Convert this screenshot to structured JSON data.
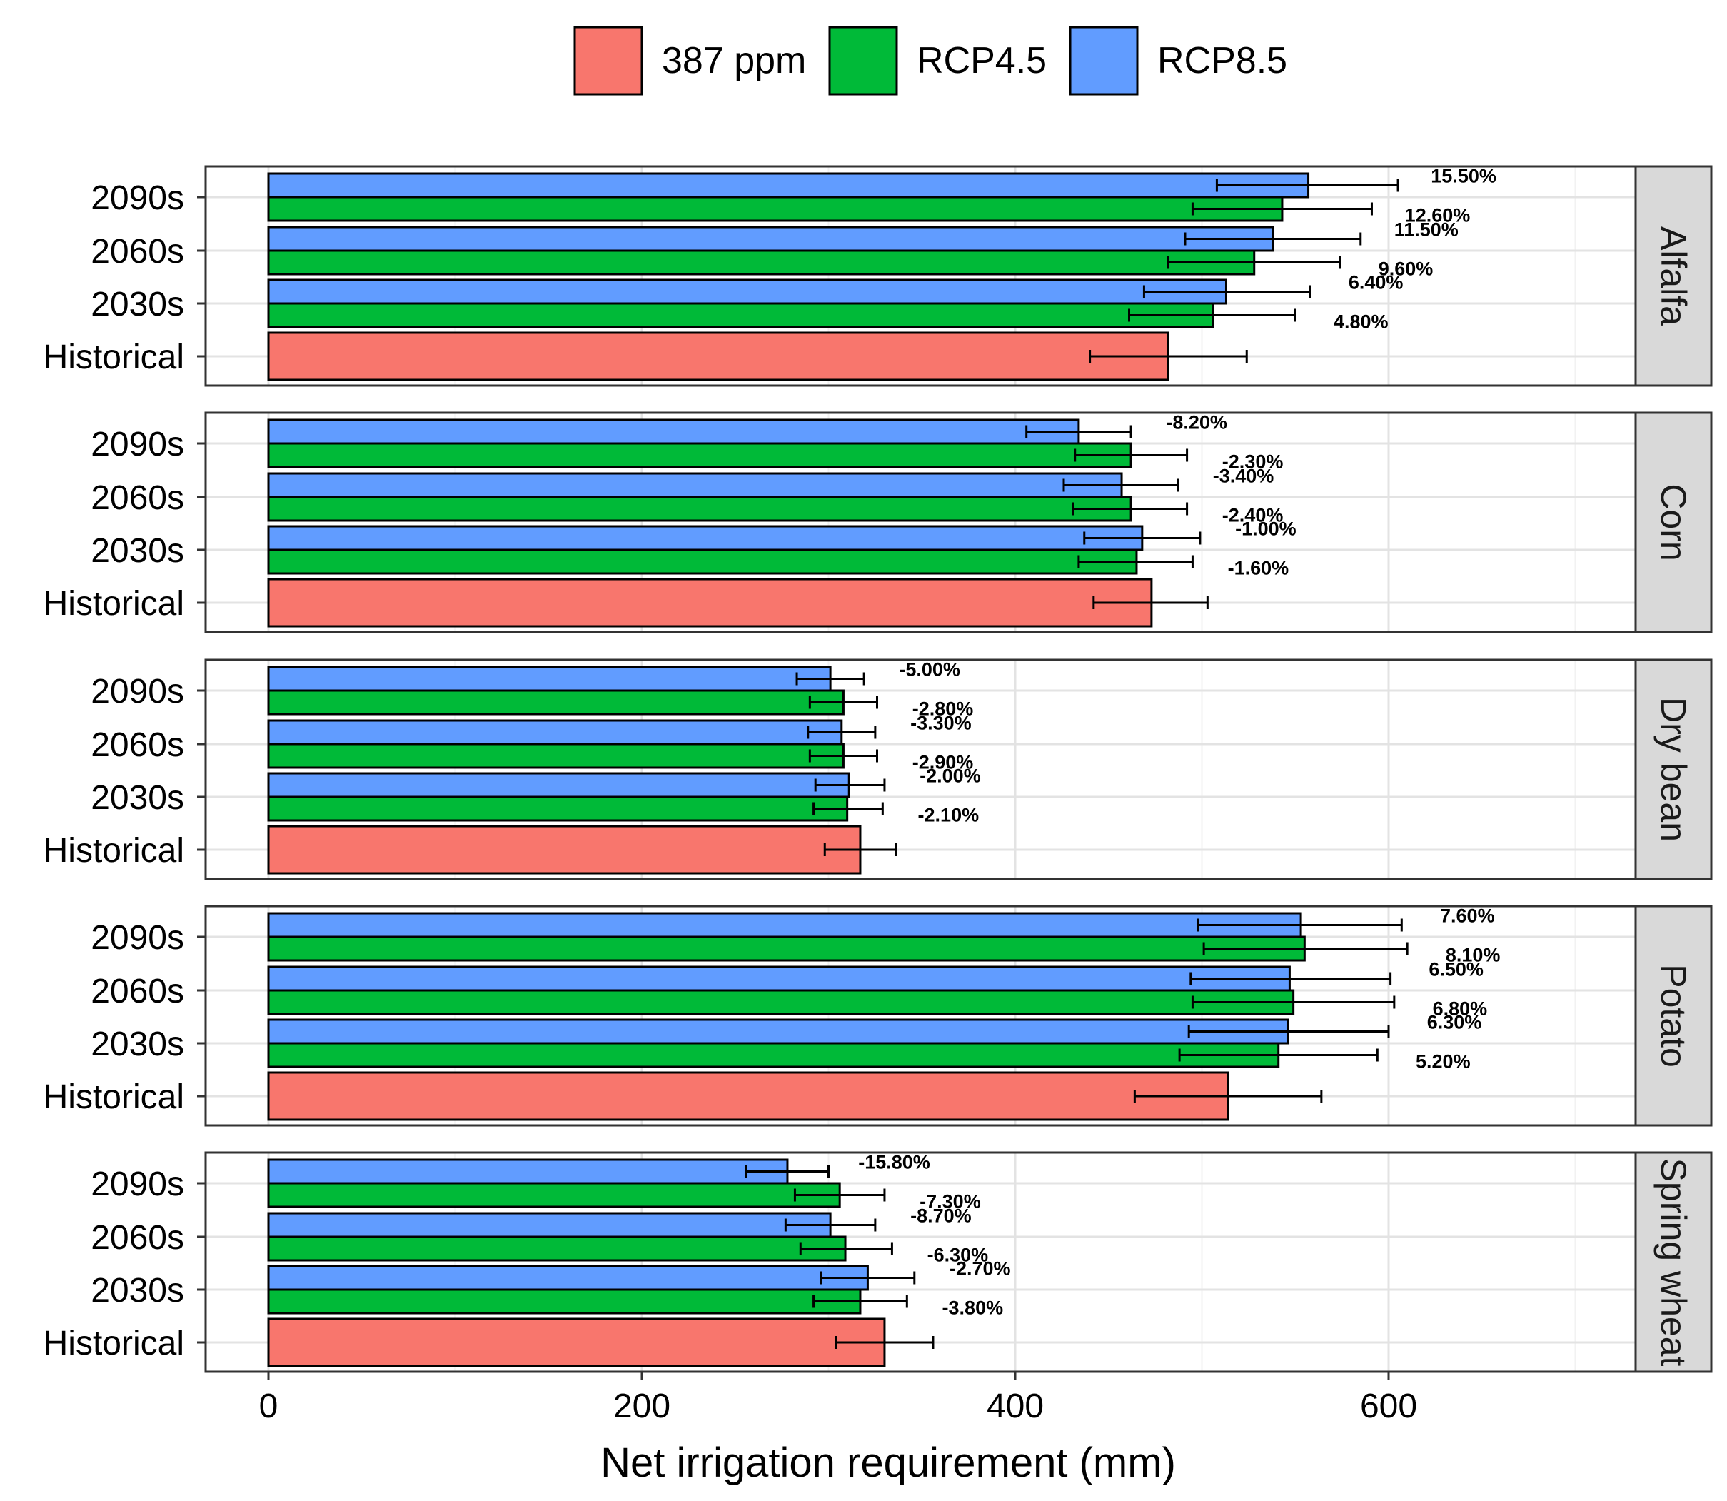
{
  "chart_data": {
    "type": "bar",
    "orientation": "horizontal",
    "xlabel": "Net irrigation requirement (mm)",
    "xlim": [
      -35,
      735
    ],
    "xticks": [
      0,
      200,
      400,
      600
    ],
    "categories": [
      "Historical",
      "2030s",
      "2060s",
      "2090s"
    ],
    "legend": {
      "position": "top",
      "items": [
        {
          "label": "387 ppm",
          "color": "#F8766D"
        },
        {
          "label": "RCP4.5",
          "color": "#00BA38"
        },
        {
          "label": "RCP8.5",
          "color": "#619CFF"
        }
      ]
    },
    "colors": {
      "387 ppm": "#F8766D",
      "RCP4.5": "#00BA38",
      "RCP8.5": "#619CFF"
    },
    "panels": [
      {
        "crop": "Alfalfa",
        "historical": {
          "value": 482,
          "err_low": 440,
          "err_high": 524
        },
        "periods": [
          {
            "period": "2030s",
            "rcp45": {
              "value": 506,
              "err_low": 461,
              "err_high": 550,
              "label": "4.80%"
            },
            "rcp85": {
              "value": 513,
              "err_low": 469,
              "err_high": 558,
              "label": "6.40%"
            }
          },
          {
            "period": "2060s",
            "rcp45": {
              "value": 528,
              "err_low": 482,
              "err_high": 574,
              "label": "9.60%"
            },
            "rcp85": {
              "value": 538,
              "err_low": 491,
              "err_high": 585,
              "label": "11.50%"
            }
          },
          {
            "period": "2090s",
            "rcp45": {
              "value": 543,
              "err_low": 495,
              "err_high": 591,
              "label": "12.60%"
            },
            "rcp85": {
              "value": 557,
              "err_low": 508,
              "err_high": 605,
              "label": "15.50%"
            }
          }
        ]
      },
      {
        "crop": "Corn",
        "historical": {
          "value": 473,
          "err_low": 442,
          "err_high": 503,
          "label": ""
        },
        "periods": [
          {
            "period": "2030s",
            "rcp45": {
              "value": 465,
              "err_low": 434,
              "err_high": 495,
              "label": "-1.60%"
            },
            "rcp85": {
              "value": 468,
              "err_low": 437,
              "err_high": 499,
              "label": "-1.00%"
            }
          },
          {
            "period": "2060s",
            "rcp45": {
              "value": 462,
              "err_low": 431,
              "err_high": 492,
              "label": "-2.40%"
            },
            "rcp85": {
              "value": 457,
              "err_low": 426,
              "err_high": 487,
              "label": "-3.40%"
            }
          },
          {
            "period": "2090s",
            "rcp45": {
              "value": 462,
              "err_low": 432,
              "err_high": 492,
              "label": "-2.30%"
            },
            "rcp85": {
              "value": 434,
              "err_low": 406,
              "err_high": 462,
              "label": "-8.20%"
            }
          }
        ]
      },
      {
        "crop": "Dry bean",
        "historical": {
          "value": 317,
          "err_low": 298,
          "err_high": 336
        },
        "periods": [
          {
            "period": "2030s",
            "rcp45": {
              "value": 310,
              "err_low": 292,
              "err_high": 329,
              "label": "-2.10%"
            },
            "rcp85": {
              "value": 311,
              "err_low": 293,
              "err_high": 330,
              "label": "-2.00%"
            }
          },
          {
            "period": "2060s",
            "rcp45": {
              "value": 308,
              "err_low": 290,
              "err_high": 326,
              "label": "-2.90%"
            },
            "rcp85": {
              "value": 307,
              "err_low": 289,
              "err_high": 325,
              "label": "-3.30%"
            }
          },
          {
            "period": "2090s",
            "rcp45": {
              "value": 308,
              "err_low": 290,
              "err_high": 326,
              "label": "-2.80%"
            },
            "rcp85": {
              "value": 301,
              "err_low": 283,
              "err_high": 319,
              "label": "-5.00%"
            }
          }
        ]
      },
      {
        "crop": "Potato",
        "historical": {
          "value": 514,
          "err_low": 464,
          "err_high": 564
        },
        "periods": [
          {
            "period": "2030s",
            "rcp45": {
              "value": 541,
              "err_low": 488,
              "err_high": 594,
              "label": "5.20%"
            },
            "rcp85": {
              "value": 546,
              "err_low": 493,
              "err_high": 600,
              "label": "6.30%"
            }
          },
          {
            "period": "2060s",
            "rcp45": {
              "value": 549,
              "err_low": 495,
              "err_high": 603,
              "label": "6.80%"
            },
            "rcp85": {
              "value": 547,
              "err_low": 494,
              "err_high": 601,
              "label": "6.50%"
            }
          },
          {
            "period": "2090s",
            "rcp45": {
              "value": 555,
              "err_low": 501,
              "err_high": 610,
              "label": "8.10%"
            },
            "rcp85": {
              "value": 553,
              "err_low": 498,
              "err_high": 607,
              "label": "7.60%"
            }
          }
        ]
      },
      {
        "crop": "Spring wheat",
        "historical": {
          "value": 330,
          "err_low": 304,
          "err_high": 356
        },
        "periods": [
          {
            "period": "2030s",
            "rcp45": {
              "value": 317,
              "err_low": 292,
              "err_high": 342,
              "label": "-3.80%"
            },
            "rcp85": {
              "value": 321,
              "err_low": 296,
              "err_high": 346,
              "label": "-2.70%"
            }
          },
          {
            "period": "2060s",
            "rcp45": {
              "value": 309,
              "err_low": 285,
              "err_high": 334,
              "label": "-6.30%"
            },
            "rcp85": {
              "value": 301,
              "err_low": 277,
              "err_high": 325,
              "label": "-8.70%"
            }
          },
          {
            "period": "2090s",
            "rcp45": {
              "value": 306,
              "err_low": 282,
              "err_high": 330,
              "label": "-7.30%"
            },
            "rcp85": {
              "value": 278,
              "err_low": 256,
              "err_high": 300,
              "label": "-15.80%"
            }
          }
        ]
      }
    ]
  }
}
